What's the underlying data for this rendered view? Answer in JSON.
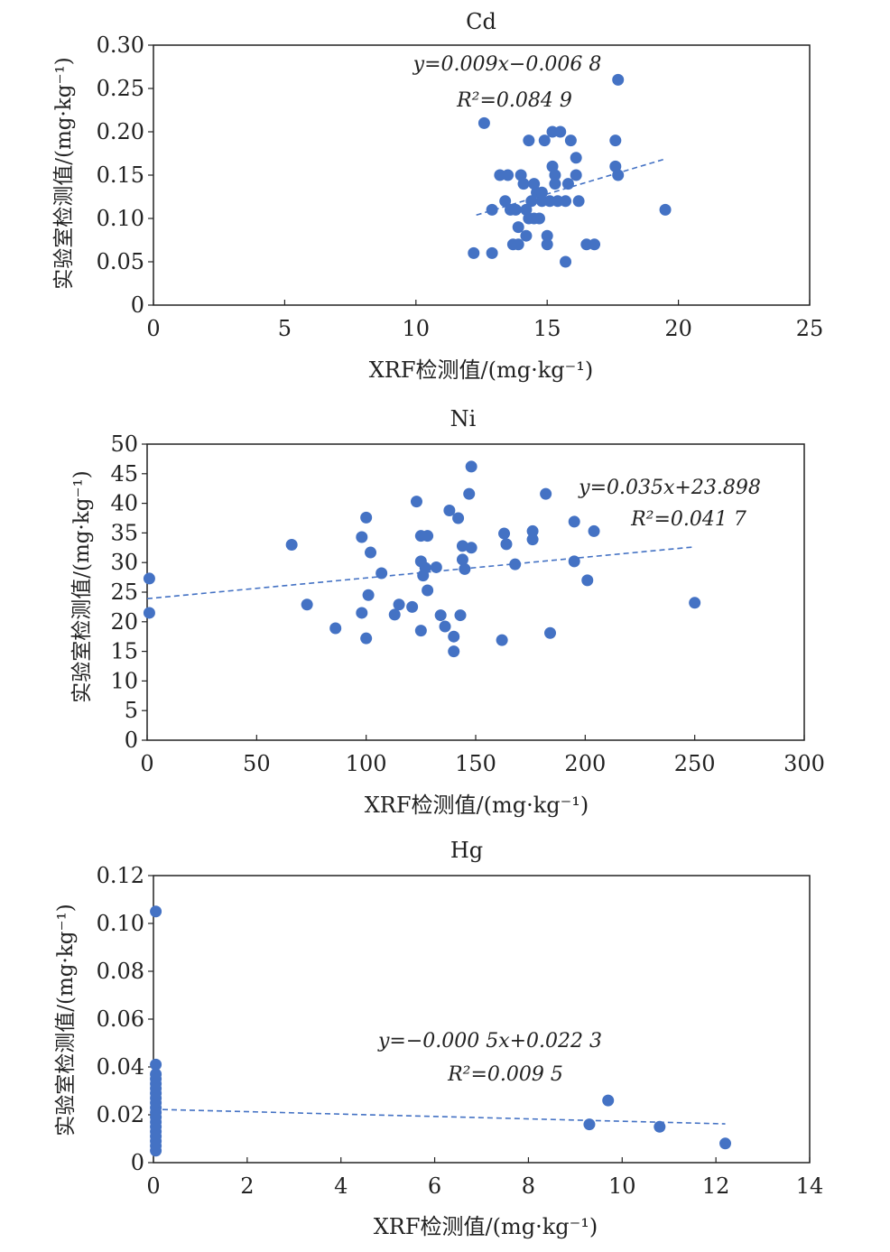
{
  "chart_data": [
    {
      "type": "scatter",
      "title": "Cd",
      "xlabel": "XRF检测值/(mg·kg⁻¹)",
      "ylabel": "实验室检测值/(mg·kg⁻¹)",
      "xlim": [
        0,
        25
      ],
      "ylim": [
        0,
        0.3
      ],
      "xticks": [
        "0",
        "5",
        "10",
        "15",
        "20",
        "25"
      ],
      "yticks": [
        "0",
        "0.05",
        "0.10",
        "0.15",
        "0.20",
        "0.25",
        "0.30"
      ],
      "equation": "y=0.009x−0.006 8",
      "r2": "R²=0.084 9",
      "trendline": {
        "slope": 0.009,
        "intercept": -0.0068,
        "x_range": [
          12.3,
          19.5
        ]
      },
      "points": [
        [
          12.2,
          0.06
        ],
        [
          12.6,
          0.21
        ],
        [
          12.9,
          0.11
        ],
        [
          12.9,
          0.06
        ],
        [
          13.2,
          0.15
        ],
        [
          13.5,
          0.15
        ],
        [
          13.4,
          0.12
        ],
        [
          13.6,
          0.11
        ],
        [
          13.7,
          0.07
        ],
        [
          13.8,
          0.11
        ],
        [
          13.9,
          0.09
        ],
        [
          13.9,
          0.07
        ],
        [
          14.0,
          0.15
        ],
        [
          14.1,
          0.14
        ],
        [
          14.2,
          0.08
        ],
        [
          14.2,
          0.11
        ],
        [
          14.3,
          0.19
        ],
        [
          14.3,
          0.1
        ],
        [
          14.4,
          0.12
        ],
        [
          14.5,
          0.14
        ],
        [
          14.5,
          0.1
        ],
        [
          14.6,
          0.13
        ],
        [
          14.7,
          0.1
        ],
        [
          14.8,
          0.12
        ],
        [
          14.8,
          0.13
        ],
        [
          14.9,
          0.19
        ],
        [
          15.0,
          0.08
        ],
        [
          15.0,
          0.07
        ],
        [
          15.1,
          0.12
        ],
        [
          15.2,
          0.16
        ],
        [
          15.2,
          0.2
        ],
        [
          15.3,
          0.14
        ],
        [
          15.3,
          0.15
        ],
        [
          15.4,
          0.12
        ],
        [
          15.5,
          0.2
        ],
        [
          15.7,
          0.12
        ],
        [
          15.7,
          0.05
        ],
        [
          15.8,
          0.14
        ],
        [
          15.9,
          0.19
        ],
        [
          16.1,
          0.15
        ],
        [
          16.1,
          0.17
        ],
        [
          16.2,
          0.12
        ],
        [
          16.5,
          0.07
        ],
        [
          16.8,
          0.07
        ],
        [
          17.6,
          0.19
        ],
        [
          17.6,
          0.16
        ],
        [
          17.7,
          0.15
        ],
        [
          17.7,
          0.26
        ],
        [
          19.5,
          0.11
        ]
      ]
    },
    {
      "type": "scatter",
      "title": "Ni",
      "xlabel": "XRF检测值/(mg·kg⁻¹)",
      "ylabel": "实验室检测值/(mg·kg⁻¹)",
      "xlim": [
        0,
        300
      ],
      "ylim": [
        0,
        50
      ],
      "xticks": [
        "0",
        "50",
        "100",
        "150",
        "200",
        "250",
        "300"
      ],
      "yticks": [
        "0",
        "5",
        "10",
        "15",
        "20",
        "25",
        "30",
        "35",
        "40",
        "45",
        "50"
      ],
      "equation": "y=0.035x+23.898",
      "r2": "R²=0.041 7",
      "trendline": {
        "slope": 0.035,
        "intercept": 23.898,
        "x_range": [
          0,
          250
        ]
      },
      "points": [
        [
          1,
          27.3
        ],
        [
          1,
          21.5
        ],
        [
          66,
          33
        ],
        [
          73,
          22.9
        ],
        [
          86,
          18.9
        ],
        [
          98,
          34.3
        ],
        [
          98,
          21.5
        ],
        [
          100,
          37.6
        ],
        [
          100,
          17.2
        ],
        [
          101,
          24.5
        ],
        [
          102,
          31.7
        ],
        [
          107,
          28.2
        ],
        [
          113,
          21.2
        ],
        [
          115,
          22.9
        ],
        [
          121,
          22.5
        ],
        [
          123,
          40.3
        ],
        [
          125,
          18.5
        ],
        [
          125,
          34.5
        ],
        [
          125,
          30.2
        ],
        [
          126,
          27.8
        ],
        [
          127,
          29.1
        ],
        [
          128,
          34.5
        ],
        [
          128,
          25.3
        ],
        [
          132,
          29.2
        ],
        [
          134,
          21.1
        ],
        [
          136,
          19.2
        ],
        [
          138,
          38.8
        ],
        [
          140,
          17.5
        ],
        [
          140,
          15.0
        ],
        [
          142,
          37.5
        ],
        [
          143,
          21.1
        ],
        [
          144,
          32.8
        ],
        [
          144,
          30.5
        ],
        [
          145,
          28.9
        ],
        [
          147,
          41.6
        ],
        [
          148,
          32.5
        ],
        [
          148,
          46.2
        ],
        [
          162,
          16.9
        ],
        [
          163,
          34.9
        ],
        [
          164,
          33.1
        ],
        [
          168,
          29.7
        ],
        [
          176,
          35.3
        ],
        [
          176,
          33.9
        ],
        [
          182,
          41.6
        ],
        [
          184,
          18.1
        ],
        [
          195,
          36.9
        ],
        [
          195,
          30.2
        ],
        [
          201,
          27.0
        ],
        [
          204,
          35.3
        ],
        [
          250,
          23.2
        ]
      ]
    },
    {
      "type": "scatter",
      "title": "Hg",
      "xlabel": "XRF检测值/(mg·kg⁻¹)",
      "ylabel": "实验室检测值/(mg·kg⁻¹)",
      "xlim": [
        0,
        14
      ],
      "ylim": [
        0,
        0.12
      ],
      "xticks": [
        "0",
        "2",
        "4",
        "6",
        "8",
        "10",
        "12",
        "14"
      ],
      "yticks": [
        "0",
        "0.02",
        "0.04",
        "0.06",
        "0.08",
        "0.10",
        "0.12"
      ],
      "equation": "y=−0.000 5x+0.022 3",
      "r2": "R²=0.009 5",
      "trendline": {
        "slope": -0.0005,
        "intercept": 0.0223,
        "x_range": [
          0,
          12.2
        ]
      },
      "points": [
        [
          0.05,
          0.105
        ],
        [
          0.05,
          0.041
        ],
        [
          0.05,
          0.037
        ],
        [
          0.05,
          0.035
        ],
        [
          0.05,
          0.033
        ],
        [
          0.05,
          0.031
        ],
        [
          0.05,
          0.029
        ],
        [
          0.05,
          0.027
        ],
        [
          0.05,
          0.025
        ],
        [
          0.05,
          0.023
        ],
        [
          0.05,
          0.021
        ],
        [
          0.05,
          0.019
        ],
        [
          0.05,
          0.017
        ],
        [
          0.05,
          0.015
        ],
        [
          0.05,
          0.013
        ],
        [
          0.05,
          0.011
        ],
        [
          0.05,
          0.009
        ],
        [
          0.05,
          0.007
        ],
        [
          0.05,
          0.005
        ],
        [
          9.3,
          0.016
        ],
        [
          9.7,
          0.026
        ],
        [
          10.8,
          0.015
        ],
        [
          12.2,
          0.008
        ]
      ]
    }
  ]
}
